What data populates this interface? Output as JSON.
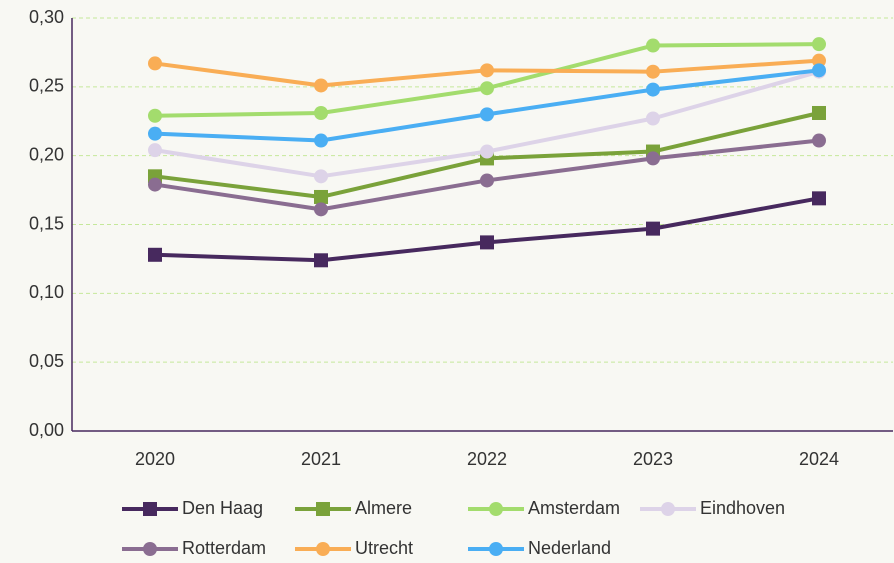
{
  "chart_data": {
    "type": "line",
    "categories": [
      "2020",
      "2021",
      "2022",
      "2023",
      "2024"
    ],
    "series": [
      {
        "name": "Den Haag",
        "color": "#47295e",
        "marker": "square",
        "values": [
          0.128,
          0.124,
          0.137,
          0.147,
          0.169
        ]
      },
      {
        "name": "Almere",
        "color": "#7aa23a",
        "marker": "square",
        "values": [
          0.185,
          0.17,
          0.198,
          0.203,
          0.231
        ]
      },
      {
        "name": "Amsterdam",
        "color": "#a3dc6d",
        "marker": "circle",
        "values": [
          0.229,
          0.231,
          0.249,
          0.28,
          0.281
        ]
      },
      {
        "name": "Eindhoven",
        "color": "#ddd3e8",
        "marker": "circle",
        "values": [
          0.204,
          0.185,
          0.203,
          0.227,
          0.261
        ]
      },
      {
        "name": "Rotterdam",
        "color": "#8a6d91",
        "marker": "circle",
        "values": [
          0.179,
          0.161,
          0.182,
          0.198,
          0.211
        ]
      },
      {
        "name": "Utrecht",
        "color": "#f9ad55",
        "marker": "circle",
        "values": [
          0.267,
          0.251,
          0.262,
          0.261,
          0.269
        ]
      },
      {
        "name": "Nederland",
        "color": "#4aaef3",
        "marker": "circle",
        "values": [
          0.216,
          0.211,
          0.23,
          0.248,
          0.262
        ]
      }
    ],
    "ylim": [
      0,
      0.3
    ],
    "yticks": [
      {
        "value": 0,
        "label": "0,00"
      },
      {
        "value": 0.05,
        "label": "0,05"
      },
      {
        "value": 0.1,
        "label": "0,10"
      },
      {
        "value": 0.15,
        "label": "0,15"
      },
      {
        "value": 0.2,
        "label": "0,20"
      },
      {
        "value": 0.25,
        "label": "0,25"
      },
      {
        "value": 0.3,
        "label": "0,30"
      }
    ],
    "grid": true,
    "legend": "bottom"
  }
}
